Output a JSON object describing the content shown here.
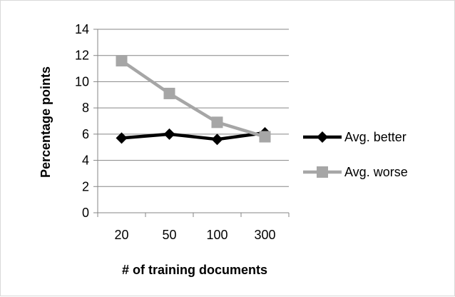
{
  "chart_data": {
    "type": "line",
    "categories": [
      "20",
      "50",
      "100",
      "300"
    ],
    "series": [
      {
        "name": "Avg. better",
        "values": [
          5.7,
          6.0,
          5.6,
          6.1
        ],
        "color": "#000000",
        "marker": "diamond"
      },
      {
        "name": "Avg. worse",
        "values": [
          11.6,
          9.1,
          6.9,
          5.8
        ],
        "color": "#a6a6a6",
        "marker": "square"
      }
    ],
    "yticks": [
      "0",
      "2",
      "4",
      "6",
      "8",
      "10",
      "12",
      "14"
    ],
    "ylim": [
      0,
      14
    ],
    "ystep": 2,
    "xlabel": "# of training documents",
    "ylabel": "Percentage points",
    "grid": true,
    "legend_position": "right"
  }
}
